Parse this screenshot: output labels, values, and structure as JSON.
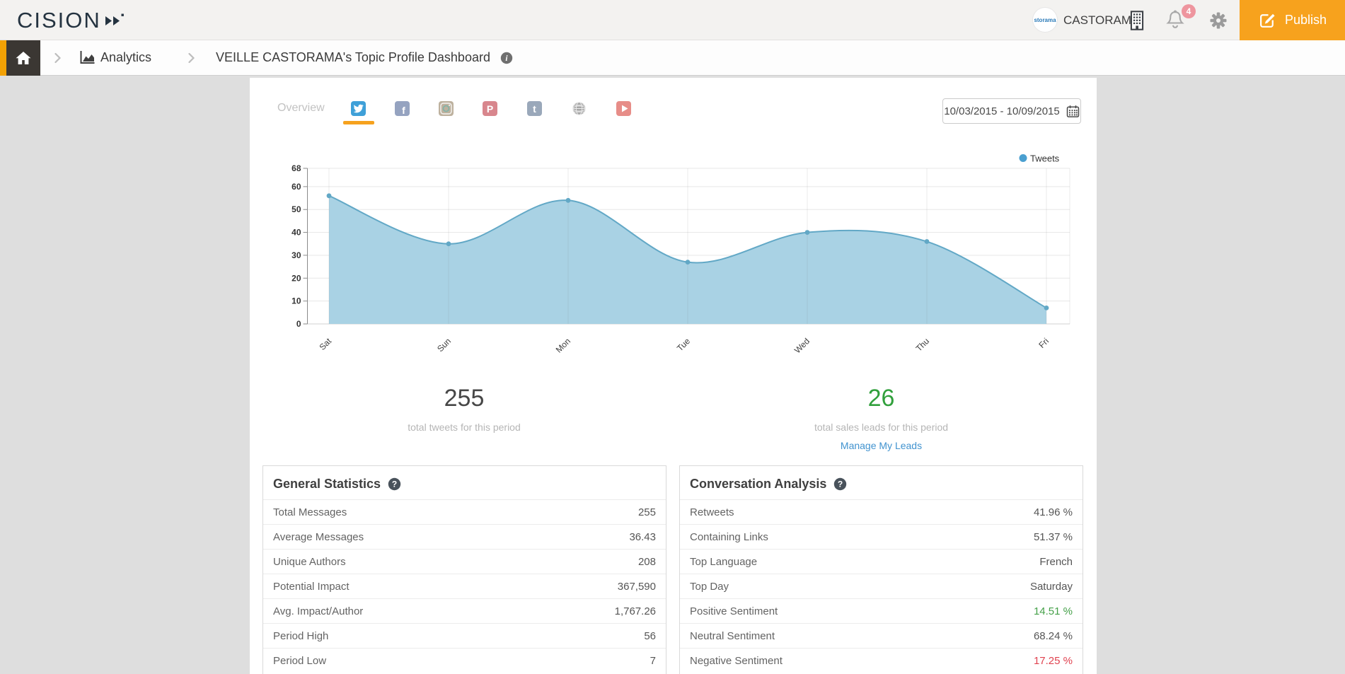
{
  "topbar": {
    "logo_text": "CISION",
    "avatar_text": "storama",
    "account_name": "CASTORAMA",
    "notification_count": "4",
    "publish_label": "Publish",
    "icons": [
      "building-icon",
      "bell-icon",
      "gear-icon",
      "edit-icon"
    ]
  },
  "breadcrumb": {
    "analytics_label": "Analytics",
    "page_title": "VEILLE CASTORAMA's Topic Profile Dashboard"
  },
  "tabs": {
    "overview_label": "Overview",
    "items": [
      {
        "name": "twitter",
        "glyph": "bird",
        "color": "#3fa0d8",
        "active": true
      },
      {
        "name": "facebook",
        "glyph": "f",
        "color": "#95a3c0",
        "active": false
      },
      {
        "name": "instagram",
        "glyph": "camera",
        "color": "#bdb19e",
        "active": false
      },
      {
        "name": "pinterest",
        "glyph": "P",
        "color": "#d8868d",
        "active": false
      },
      {
        "name": "tumblr",
        "glyph": "t",
        "color": "#9aa8ba",
        "active": false
      },
      {
        "name": "web",
        "glyph": "globe",
        "color": "#a6a6a6",
        "active": false
      },
      {
        "name": "youtube",
        "glyph": "play",
        "color": "#e78d88",
        "active": false
      }
    ]
  },
  "filters": {
    "date_range": "10/03/2015 - 10/09/2015"
  },
  "chart_data": {
    "type": "area",
    "title": "",
    "categories": [
      "Sat",
      "Sun",
      "Mon",
      "Tue",
      "Wed",
      "Thu",
      "Fri"
    ],
    "series": [
      {
        "name": "Tweets",
        "values": [
          56,
          35,
          54,
          27,
          40,
          36,
          7
        ]
      }
    ],
    "xlabel": "",
    "ylabel": "",
    "ylim": [
      0,
      68
    ],
    "yticks": [
      0,
      10,
      20,
      30,
      40,
      50,
      60,
      68
    ],
    "grid": true,
    "legend_position": "top-right",
    "colors": {
      "area_fill": "#a9d2e4",
      "line": "#62a8c6",
      "marker": "#62a8c6",
      "legend_dot": "#4a9fd0"
    }
  },
  "summary": {
    "tweets_total": "255",
    "tweets_caption": "total tweets for this period",
    "leads_total": "26",
    "leads_caption": "total sales leads for this period",
    "leads_link": "Manage My Leads"
  },
  "panels": {
    "general": {
      "title": "General Statistics",
      "rows": [
        {
          "label": "Total Messages",
          "value": "255"
        },
        {
          "label": "Average Messages",
          "value": "36.43"
        },
        {
          "label": "Unique Authors",
          "value": "208"
        },
        {
          "label": "Potential Impact",
          "value": "367,590"
        },
        {
          "label": "Avg. Impact/Author",
          "value": "1,767.26"
        },
        {
          "label": "Period High",
          "value": "56"
        },
        {
          "label": "Period Low",
          "value": "7"
        }
      ]
    },
    "conversation": {
      "title": "Conversation Analysis",
      "rows": [
        {
          "label": "Retweets",
          "value": "41.96 %"
        },
        {
          "label": "Containing Links",
          "value": "51.37 %"
        },
        {
          "label": "Top Language",
          "value": "French"
        },
        {
          "label": "Top Day",
          "value": "Saturday"
        },
        {
          "label": "Positive Sentiment",
          "value": "14.51 %",
          "value_color": "#44a048"
        },
        {
          "label": "Neutral Sentiment",
          "value": "68.24 %"
        },
        {
          "label": "Negative Sentiment",
          "value": "17.25 %",
          "value_color": "#e04350"
        }
      ]
    }
  },
  "colors": {
    "accent_orange": "#f7a21d",
    "breadcrumb_accent": "#f2a104",
    "link_blue": "#4193cf",
    "leads_green": "#31a03c",
    "positive_green": "#44a048",
    "negative_red": "#e04350",
    "chart_fill": "#a9d2e4",
    "chart_line": "#62a8c6",
    "badge_pink": "#ee959e"
  }
}
